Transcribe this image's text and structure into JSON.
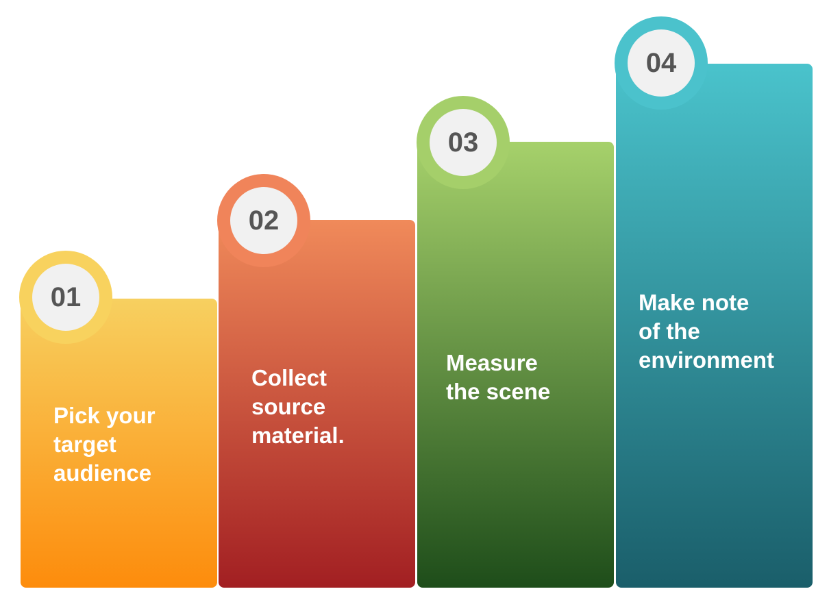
{
  "steps": [
    {
      "number": "01",
      "text": "Pick your\ntarget\naudience",
      "color_top": "#f7d060",
      "color_bottom": "#fd8c0c",
      "ring": "#f8d25e"
    },
    {
      "number": "02",
      "text": "Collect\nsource\nmaterial.",
      "color_top": "#f08a5a",
      "color_bottom": "#a21f22",
      "ring": "#f0845a"
    },
    {
      "number": "03",
      "text": "Measure\nthe scene",
      "color_top": "#a6d16b",
      "color_bottom": "#1e4d1a",
      "ring": "#a5cf6a"
    },
    {
      "number": "04",
      "text": "Make note\nof the\nenvironment",
      "color_top": "#4ac3cc",
      "color_bottom": "#1a5e6a",
      "ring": "#4bc2cc"
    }
  ]
}
